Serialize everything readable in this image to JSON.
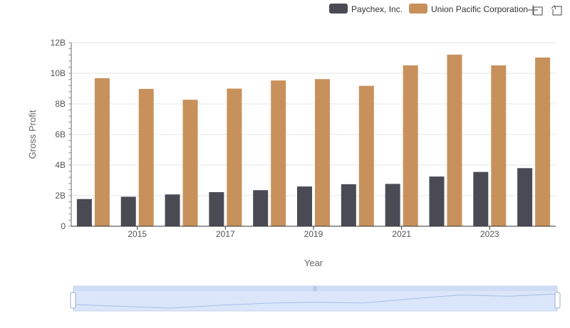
{
  "chart_data": {
    "type": "bar",
    "ylabel": "Gross Profit",
    "xlabel": "Year",
    "x": [
      2014,
      2015,
      2016,
      2017,
      2018,
      2019,
      2020,
      2021,
      2022,
      2023,
      2024
    ],
    "x_tick_labels": [
      "2015",
      "2017",
      "2019",
      "2021",
      "2023"
    ],
    "y_tick_labels": [
      "0",
      "2B",
      "4B",
      "6B",
      "8B",
      "10B",
      "12B"
    ],
    "ylim": [
      0,
      12000000000
    ],
    "grid": true,
    "legend_position": "top-right",
    "series": [
      {
        "name": "Paychex, Inc.",
        "color": "#4a4a55",
        "values": [
          1780000000,
          1930000000,
          2080000000,
          2230000000,
          2360000000,
          2600000000,
          2750000000,
          2770000000,
          3250000000,
          3550000000,
          3800000000
        ]
      },
      {
        "name": "Union Pacific Corporation",
        "color": "#c8915c",
        "values": [
          9680000000,
          8980000000,
          8270000000,
          9000000000,
          9530000000,
          9620000000,
          9180000000,
          10520000000,
          11220000000,
          10520000000,
          11030000000
        ]
      }
    ]
  },
  "toolbar": {
    "icons": [
      "crosshair-icon",
      "restore-icon"
    ]
  },
  "colors": {
    "zoom_fill": "#dbe6fb",
    "zoom_border": "#c6d4ee",
    "grid": "#e6e6e6"
  }
}
